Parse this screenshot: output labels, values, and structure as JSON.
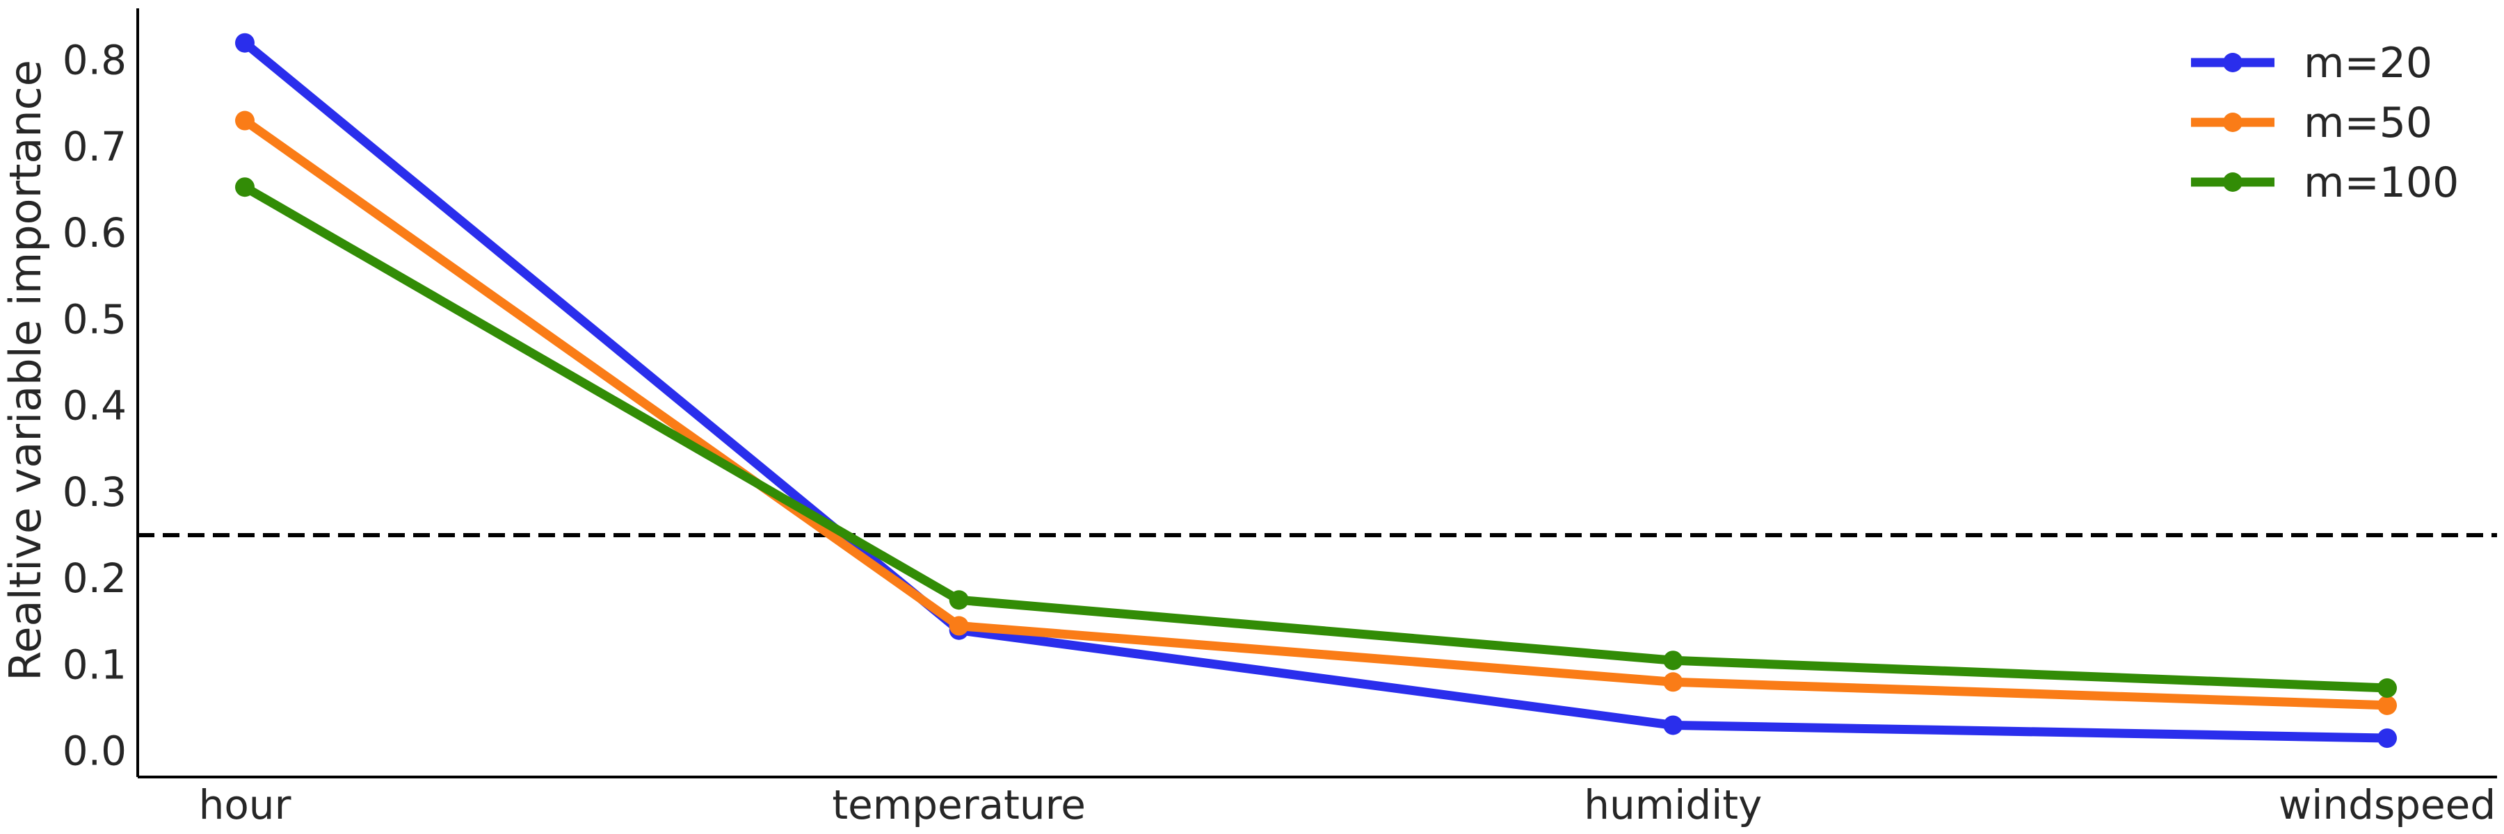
{
  "chart_data": {
    "type": "line",
    "categories": [
      "hour",
      "temperature",
      "humidity",
      "windspeed"
    ],
    "series": [
      {
        "name": "m=20",
        "color": "#2a2eec",
        "values": [
          0.82,
          0.14,
          0.03,
          0.015
        ]
      },
      {
        "name": "m=50",
        "color": "#fa7c17",
        "values": [
          0.73,
          0.145,
          0.08,
          0.053
        ]
      },
      {
        "name": "m=100",
        "color": "#328c06",
        "values": [
          0.653,
          0.175,
          0.105,
          0.073
        ]
      }
    ],
    "reference_line": {
      "y": 0.25,
      "style": "dashed",
      "color": "#000000"
    },
    "title": "",
    "xlabel": "",
    "ylabel": "Realtive variable importance",
    "ylim": [
      -0.03,
      0.86
    ],
    "yticks": [
      "0.0",
      "0.1",
      "0.2",
      "0.3",
      "0.4",
      "0.5",
      "0.6",
      "0.7",
      "0.8"
    ],
    "grid": false,
    "legend_position": "top-right"
  }
}
